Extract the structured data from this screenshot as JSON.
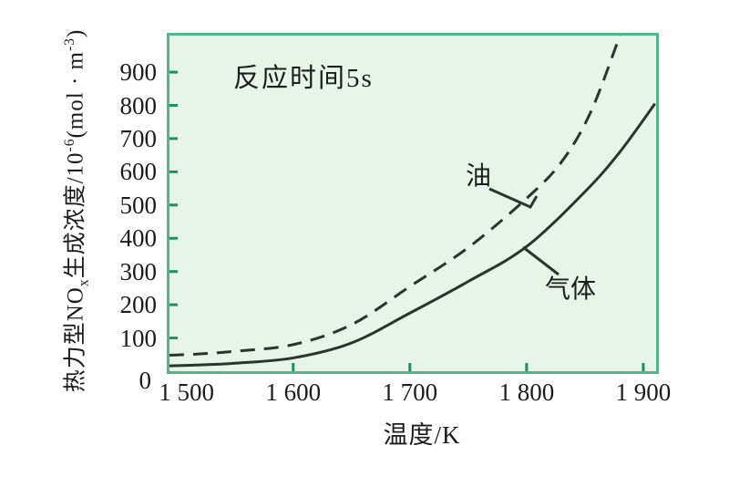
{
  "chart_data": {
    "type": "line",
    "annotation": "反应时间5s",
    "xlabel": "温度/K",
    "ylabel": "热力型NOx生成浓度/10^-6(mol·m^-3)",
    "ylabel_parts": {
      "p1": "热力型NO",
      "sub1": "x",
      "p2": "生成浓度/10",
      "sup1": "-6",
      "p3": "(mol · m",
      "sup2": "-3",
      "p4": ")"
    },
    "xlim": [
      1494,
      1911
    ],
    "ylim": [
      0,
      1010
    ],
    "x_ticks": [
      1500,
      1600,
      1700,
      1800,
      1900
    ],
    "x_tick_labels": [
      "1 500",
      "1 600",
      "1 700",
      "1 800",
      "1 900"
    ],
    "y_ticks": [
      0,
      100,
      200,
      300,
      400,
      500,
      600,
      700,
      800,
      900
    ],
    "y_tick_labels": [
      "0",
      "100",
      "200",
      "300",
      "400",
      "500",
      "600",
      "700",
      "800",
      "900"
    ],
    "grid": false,
    "legend_position": "inline-curve-labels",
    "series": [
      {
        "name": "油",
        "line_style": "dashed",
        "x": [
          1494,
          1520,
          1550,
          1600,
          1650,
          1700,
          1750,
          1800,
          1830,
          1855,
          1880
        ],
        "y": [
          48,
          52,
          60,
          80,
          140,
          255,
          372,
          520,
          630,
          780,
          1010
        ]
      },
      {
        "name": "气体",
        "line_style": "solid",
        "x": [
          1494,
          1520,
          1550,
          1600,
          1650,
          1700,
          1750,
          1800,
          1850,
          1880,
          1910
        ],
        "y": [
          16,
          19,
          24,
          40,
          85,
          175,
          270,
          375,
          540,
          660,
          805
        ]
      }
    ],
    "colors": {
      "curve": "#2b352e",
      "plot_background": "#e7f4e8",
      "border": "#53b68b",
      "tick_mark": "#1f8f5f",
      "text": "#1c1c1c",
      "page_background": "#ffffff"
    }
  }
}
